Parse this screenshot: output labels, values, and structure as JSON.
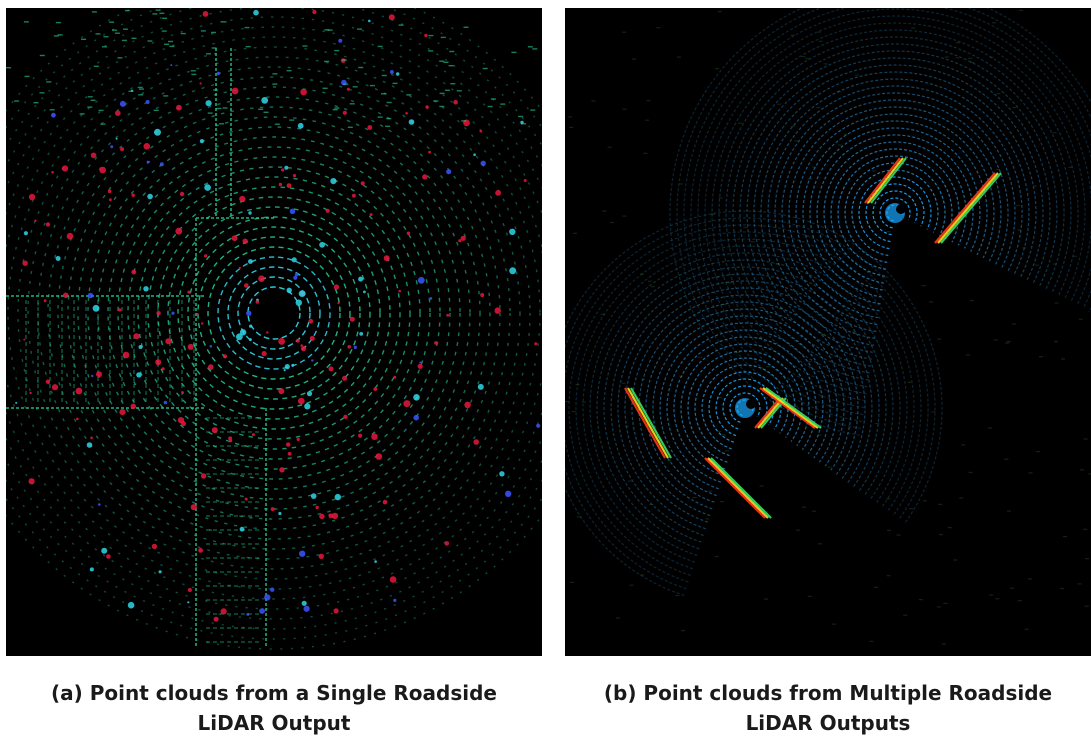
{
  "figure": {
    "panels": [
      {
        "id": "a",
        "caption_line1": "(a) Point clouds from a Single Roadside",
        "caption_line2": "LiDAR Output",
        "palette": {
          "ring": "#27d49a",
          "accent_red": "#e8183c",
          "accent_blue": "#3b55ff",
          "accent_cyan": "#2fd6e8"
        }
      },
      {
        "id": "b",
        "caption_line1": "(b) Point clouds from Multiple Roadside",
        "caption_line2": "LiDAR Outputs",
        "palette": {
          "ring": "#2d8fd0",
          "inner": "#1aa7ff",
          "wall_red": "#ff3a1a",
          "wall_yellow": "#ffe21a",
          "wall_green": "#39e26a"
        }
      }
    ]
  }
}
